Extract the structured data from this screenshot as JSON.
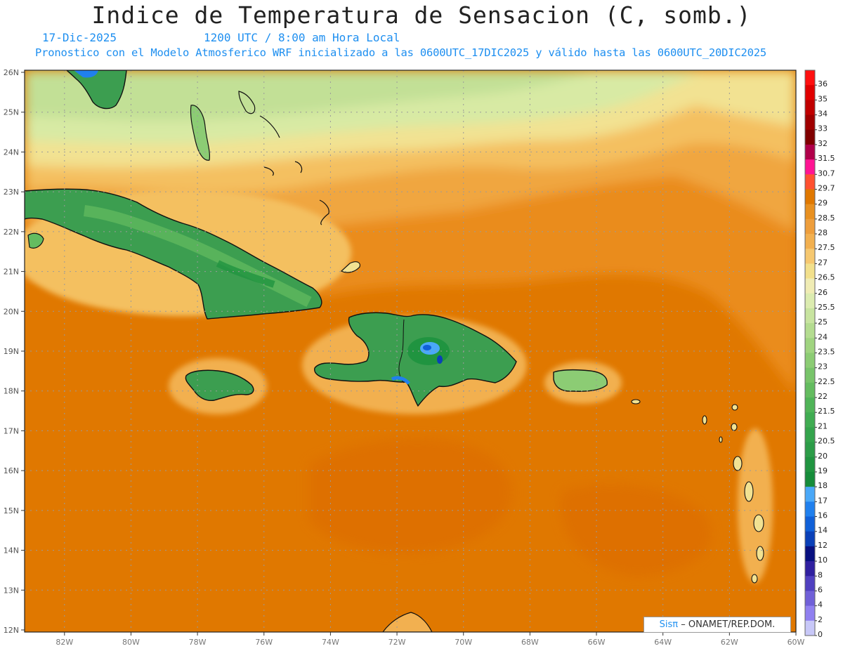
{
  "header": {
    "title": "Indice de Temperatura de Sensacion (C, somb.)",
    "date": "17-Dic-2025",
    "time": "1200 UTC / 8:00 am Hora Local",
    "forecast": "Pronostico con el Modelo Atmosferico WRF inicializado a las 0600UTC_17DIC2025 y válido hasta las  0600UTC_20DIC2025"
  },
  "map": {
    "lat_labels": [
      "26N",
      "25N",
      "24N",
      "23N",
      "22N",
      "21N",
      "20N",
      "19N",
      "18N",
      "17N",
      "16N",
      "15N",
      "14N",
      "13N",
      "12N"
    ],
    "lon_labels": [
      "82W",
      "80W",
      "78W",
      "76W",
      "74W",
      "72W",
      "70W",
      "68W",
      "66W",
      "64W",
      "62W",
      "60W"
    ],
    "ocean_color": "#e07800",
    "land_color": "#3a9a4e"
  },
  "legend": {
    "labels": [
      "36",
      "35",
      "34",
      "33",
      "32",
      "31.5",
      "30.7",
      "29.7",
      "29",
      "28.5",
      "28",
      "27.5",
      "27",
      "26.5",
      "26",
      "25.5",
      "25",
      "24",
      "23.5",
      "23",
      "22.5",
      "22",
      "21.5",
      "21",
      "20.5",
      "20",
      "19",
      "18",
      "17",
      "16",
      "14",
      "12",
      "10",
      "8",
      "6",
      "4",
      "2",
      "0"
    ],
    "colors": [
      "#ff1010",
      "#e00000",
      "#c00000",
      "#a00000",
      "#800000",
      "#b0004a",
      "#ff1493",
      "#ff5030",
      "#e07800",
      "#e89020",
      "#ee9e3c",
      "#f2b050",
      "#f6c870",
      "#f2e08c",
      "#f0ecb4",
      "#dcecb0",
      "#c8e4a0",
      "#b4dc90",
      "#a0d480",
      "#8ccc74",
      "#78c46a",
      "#64bc60",
      "#50b458",
      "#40ac52",
      "#34a44c",
      "#2c9c48",
      "#209440",
      "#168c3a",
      "#4aa8f8",
      "#2080ee",
      "#1060d8",
      "#0a40b8",
      "#081080",
      "#3020a0",
      "#5040c0",
      "#7060d8",
      "#9080f0",
      "#c8c8f8"
    ]
  },
  "credit": {
    "logo": "Sisπ",
    "text": "– ONAMET/REP.DOM."
  }
}
